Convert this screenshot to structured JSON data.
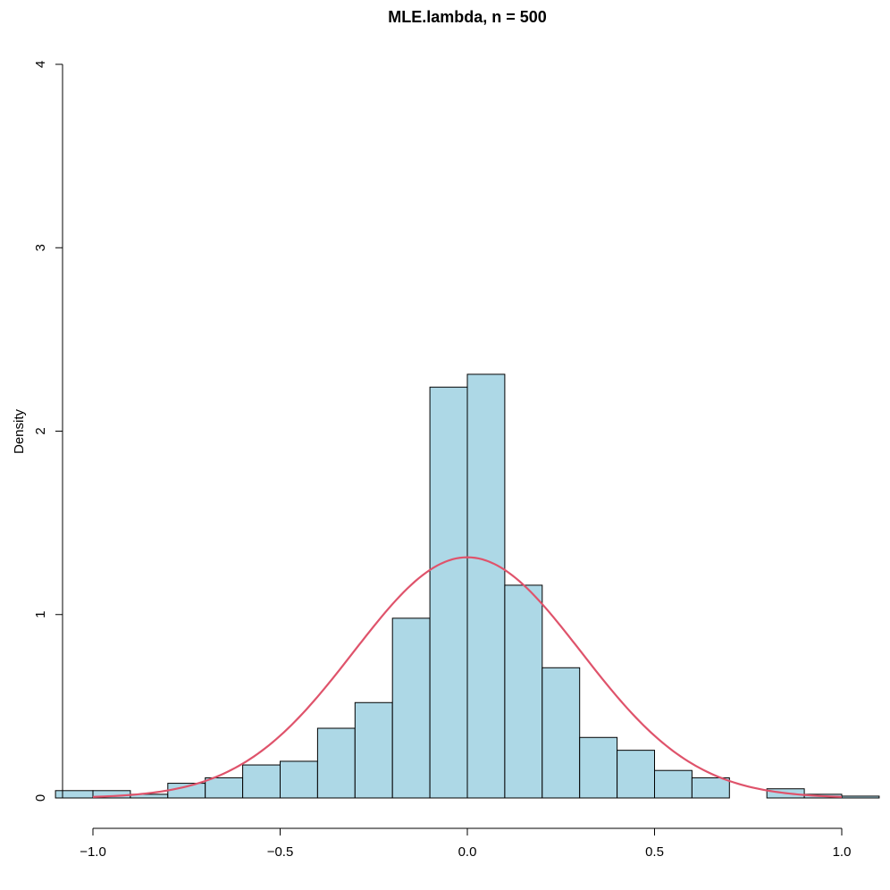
{
  "chart_data": {
    "type": "bar",
    "title": "MLE.lambda, n = 500",
    "xlabel": "",
    "ylabel": "Density",
    "xlim": [
      -1.1,
      1.08
    ],
    "ylim": [
      0,
      4
    ],
    "x_ticks": [
      -1.0,
      -0.5,
      0.0,
      0.5,
      1.0
    ],
    "x_tick_labels": [
      "−1.0",
      "−0.5",
      "0.0",
      "0.5",
      "1.0"
    ],
    "y_ticks": [
      0,
      1,
      2,
      3,
      4
    ],
    "y_tick_labels": [
      "0",
      "1",
      "2",
      "3",
      "4"
    ],
    "grid": false,
    "bins": [
      {
        "x0": -1.1,
        "x1": -1.0,
        "density": 0.04
      },
      {
        "x0": -1.0,
        "x1": -0.9,
        "density": 0.04
      },
      {
        "x0": -0.9,
        "x1": -0.8,
        "density": 0.02
      },
      {
        "x0": -0.8,
        "x1": -0.7,
        "density": 0.08
      },
      {
        "x0": -0.7,
        "x1": -0.6,
        "density": 0.11
      },
      {
        "x0": -0.6,
        "x1": -0.5,
        "density": 0.18
      },
      {
        "x0": -0.5,
        "x1": -0.4,
        "density": 0.2
      },
      {
        "x0": -0.4,
        "x1": -0.3,
        "density": 0.38
      },
      {
        "x0": -0.3,
        "x1": -0.2,
        "density": 0.52
      },
      {
        "x0": -0.2,
        "x1": -0.1,
        "density": 0.98
      },
      {
        "x0": -0.1,
        "x1": 0.0,
        "density": 2.24
      },
      {
        "x0": 0.0,
        "x1": 0.1,
        "density": 2.31
      },
      {
        "x0": 0.1,
        "x1": 0.2,
        "density": 1.16
      },
      {
        "x0": 0.2,
        "x1": 0.3,
        "density": 0.71
      },
      {
        "x0": 0.3,
        "x1": 0.4,
        "density": 0.33
      },
      {
        "x0": 0.4,
        "x1": 0.5,
        "density": 0.26
      },
      {
        "x0": 0.5,
        "x1": 0.6,
        "density": 0.15
      },
      {
        "x0": 0.6,
        "x1": 0.7,
        "density": 0.11
      },
      {
        "x0": 0.7,
        "x1": 0.8,
        "density": 0.0
      },
      {
        "x0": 0.8,
        "x1": 0.9,
        "density": 0.05
      },
      {
        "x0": 0.9,
        "x1": 1.0,
        "density": 0.02
      },
      {
        "x0": 1.0,
        "x1": 1.1,
        "density": 0.01
      }
    ],
    "density_curve": {
      "type": "normal",
      "mean": 0.0,
      "sd": 0.304,
      "x_range": [
        -1.0,
        1.0
      ]
    },
    "colors": {
      "bar_fill": "#ADD8E6",
      "bar_stroke": "#000000",
      "curve": "#DF536B"
    }
  }
}
